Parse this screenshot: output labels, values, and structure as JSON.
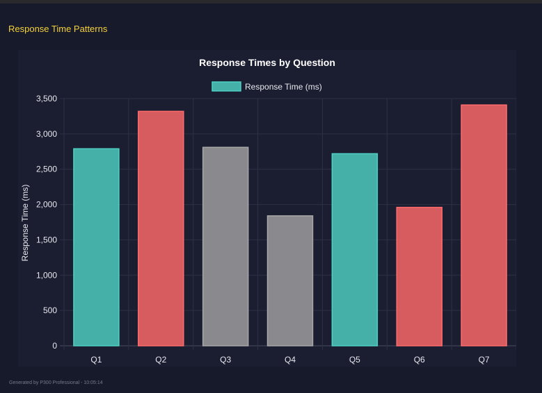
{
  "section_title": "Response Time Patterns",
  "footer": "Generated by P300 Professional - 10:05:14",
  "colors": {
    "teal": "#45b0a8",
    "red": "#d65c60",
    "gray": "#8a898d",
    "teal_border": "#4fd1c5",
    "red_border": "#ff6b6b",
    "gray_border": "#a8a8a8",
    "section_title": "#f5d13a"
  },
  "chart_data": {
    "type": "bar",
    "title": "Response Times by Question",
    "legend": {
      "label": "Response Time (ms)",
      "placement": "top"
    },
    "xlabel": "",
    "ylabel": "Response Time (ms)",
    "categories": [
      "Q1",
      "Q2",
      "Q3",
      "Q4",
      "Q5",
      "Q6",
      "Q7"
    ],
    "series": [
      {
        "name": "Response Time (ms)",
        "values": [
          2790,
          3320,
          2810,
          1840,
          2720,
          1960,
          3410
        ]
      }
    ],
    "bar_colors": [
      "teal",
      "red",
      "gray",
      "gray",
      "teal",
      "red",
      "red"
    ],
    "ylim": [
      0,
      3500
    ],
    "yticks": [
      "0",
      "500",
      "1,000",
      "1,500",
      "2,000",
      "2,500",
      "3,000",
      "3,500"
    ],
    "grid": true
  }
}
